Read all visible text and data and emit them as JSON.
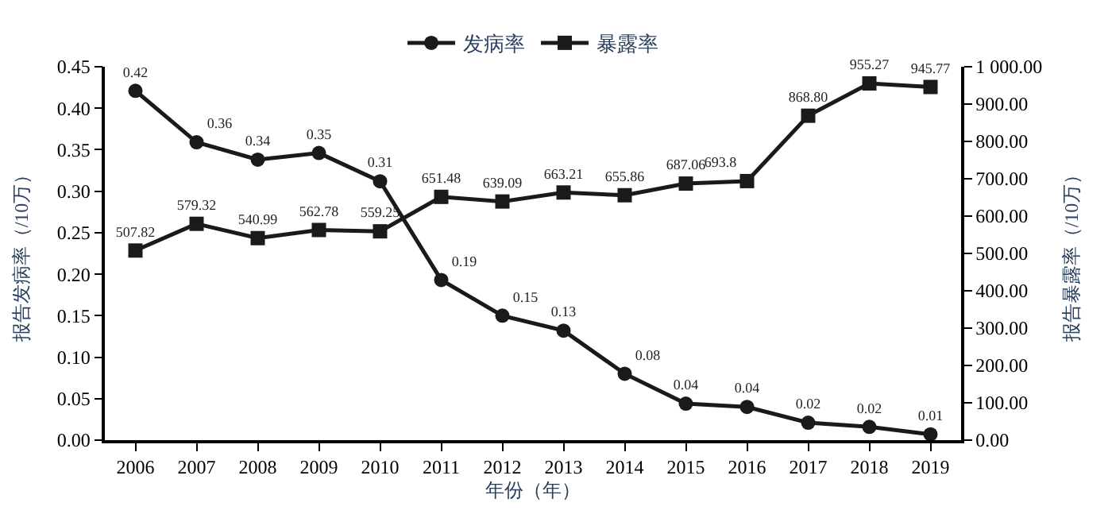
{
  "chart_data": {
    "type": "line",
    "xlabel": "年份（年）",
    "ylabel": "报告发病率（/10万）",
    "y2label": "报告暴露率（/10万）",
    "categories": [
      "2006",
      "2007",
      "2008",
      "2009",
      "2010",
      "2011",
      "2012",
      "2013",
      "2014",
      "2015",
      "2016",
      "2017",
      "2018",
      "2019"
    ],
    "series": [
      {
        "name": "发病率",
        "color": "#1a1a1a",
        "marker": "circle",
        "values": [
          0.421,
          0.359,
          0.338,
          0.346,
          0.312,
          0.193,
          0.15,
          0.132,
          0.08,
          0.044,
          0.04,
          0.021,
          0.016,
          0.007
        ],
        "value_labels": [
          "0.42",
          "0.36",
          "0.34",
          "0.35",
          "0.31",
          "0.19",
          "0.15",
          "0.13",
          "0.08",
          "0.04",
          "0.04",
          "0.02",
          "0.02",
          "0.01"
        ]
      },
      {
        "name": "暴露率",
        "color": "#1a1a1a",
        "marker": "square",
        "axis": "y2",
        "values": [
          507.82,
          579.32,
          540.99,
          562.78,
          559.25,
          651.48,
          639.09,
          663.21,
          655.86,
          687.06,
          693.8,
          868.8,
          955.27,
          945.77
        ],
        "value_labels": [
          "507.82",
          "579.32",
          "540.99",
          "562.78",
          "559.25",
          "651.48",
          "639.09",
          "663.21",
          "655.86",
          "687.06",
          "693.8",
          "868.80",
          "955.27",
          "945.77"
        ]
      }
    ],
    "ylim": [
      0,
      0.45
    ],
    "yticks": [
      {
        "value": 0,
        "label": "0.00"
      },
      {
        "value": 0.05,
        "label": "0.05"
      },
      {
        "value": 0.1,
        "label": "0.10"
      },
      {
        "value": 0.15,
        "label": "0.15"
      },
      {
        "value": 0.2,
        "label": "0.20"
      },
      {
        "value": 0.25,
        "label": "0.25"
      },
      {
        "value": 0.3,
        "label": "0.30"
      },
      {
        "value": 0.35,
        "label": "0.35"
      },
      {
        "value": 0.4,
        "label": "0.40"
      },
      {
        "value": 0.45,
        "label": "0.45"
      }
    ],
    "y2lim": [
      0,
      1000
    ],
    "y2ticks": [
      {
        "value": 0,
        "label": "0.00"
      },
      {
        "value": 100,
        "label": "100.00"
      },
      {
        "value": 200,
        "label": "200.00"
      },
      {
        "value": 300,
        "label": "300.00"
      },
      {
        "value": 400,
        "label": "400.00"
      },
      {
        "value": 500,
        "label": "500.00"
      },
      {
        "value": 600,
        "label": "600.00"
      },
      {
        "value": 700,
        "label": "700.00"
      },
      {
        "value": 800,
        "label": "800.00"
      },
      {
        "value": 900,
        "label": "900.00"
      },
      {
        "value": 1000,
        "label": "1 000.00"
      }
    ],
    "legend": "top",
    "line_style": "solid"
  }
}
